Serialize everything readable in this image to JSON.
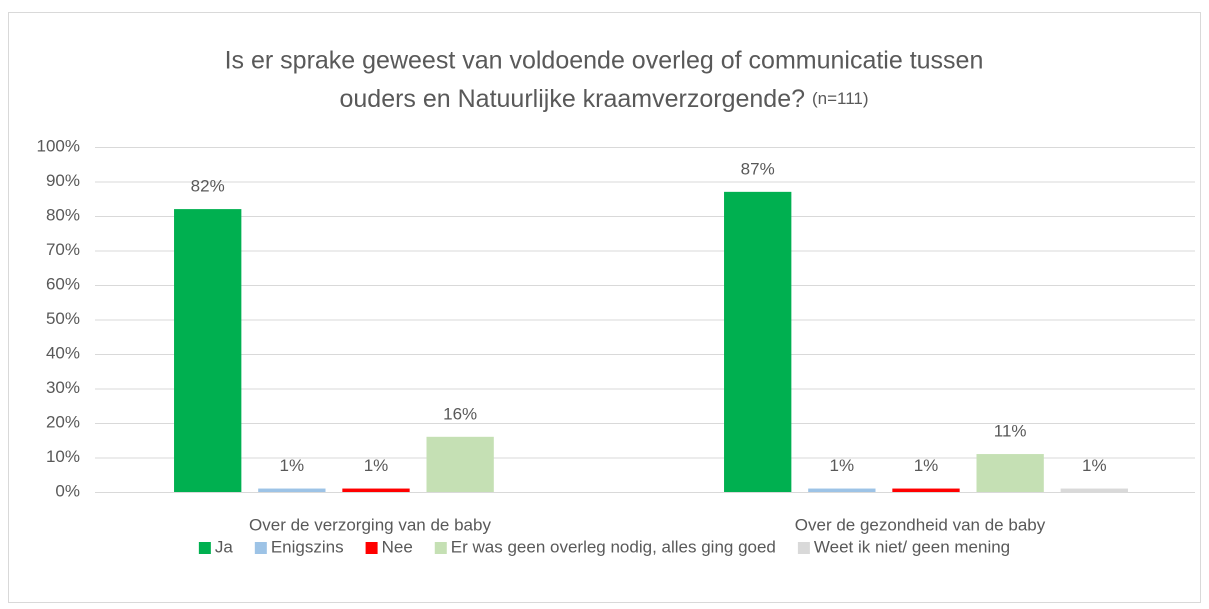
{
  "chart_data": {
    "type": "bar",
    "title": [
      "Is er sprake geweest van voldoende overleg of communicatie tussen",
      "ouders en Natuurlijke kraamverzorgende?"
    ],
    "subtitle": "(n=111)",
    "categories": [
      "Over de verzorging van de baby",
      "Over de gezondheid van de baby"
    ],
    "series": [
      {
        "name": "Ja",
        "color": "#00b050",
        "values": [
          82,
          87
        ],
        "value_labels": [
          "82%",
          "87%"
        ]
      },
      {
        "name": "Enigszins",
        "color": "#9dc3e6",
        "values": [
          1,
          1
        ],
        "value_labels": [
          "1%",
          "1%"
        ]
      },
      {
        "name": "Nee",
        "color": "#ff0000",
        "values": [
          1,
          1
        ],
        "value_labels": [
          "1%",
          "1%"
        ]
      },
      {
        "name": "Er was geen overleg nodig, alles ging goed",
        "color": "#c5e0b4",
        "values": [
          16,
          11
        ],
        "value_labels": [
          "16%",
          "11%"
        ]
      },
      {
        "name": "Weet ik niet/ geen mening",
        "color": "#d9d9d9",
        "values": [
          null,
          1
        ],
        "value_labels": [
          null,
          "1%"
        ]
      }
    ],
    "ylim": [
      0,
      100
    ],
    "yticks": [
      {
        "value": 0,
        "label": "0%"
      },
      {
        "value": 10,
        "label": "10%"
      },
      {
        "value": 20,
        "label": "20%"
      },
      {
        "value": 30,
        "label": "30%"
      },
      {
        "value": 40,
        "label": "40%"
      },
      {
        "value": 50,
        "label": "50%"
      },
      {
        "value": 60,
        "label": "60%"
      },
      {
        "value": 70,
        "label": "70%"
      },
      {
        "value": 80,
        "label": "80%"
      },
      {
        "value": 90,
        "label": "90%"
      },
      {
        "value": 100,
        "label": "100%"
      }
    ],
    "grid": true,
    "legend": "bottom"
  }
}
